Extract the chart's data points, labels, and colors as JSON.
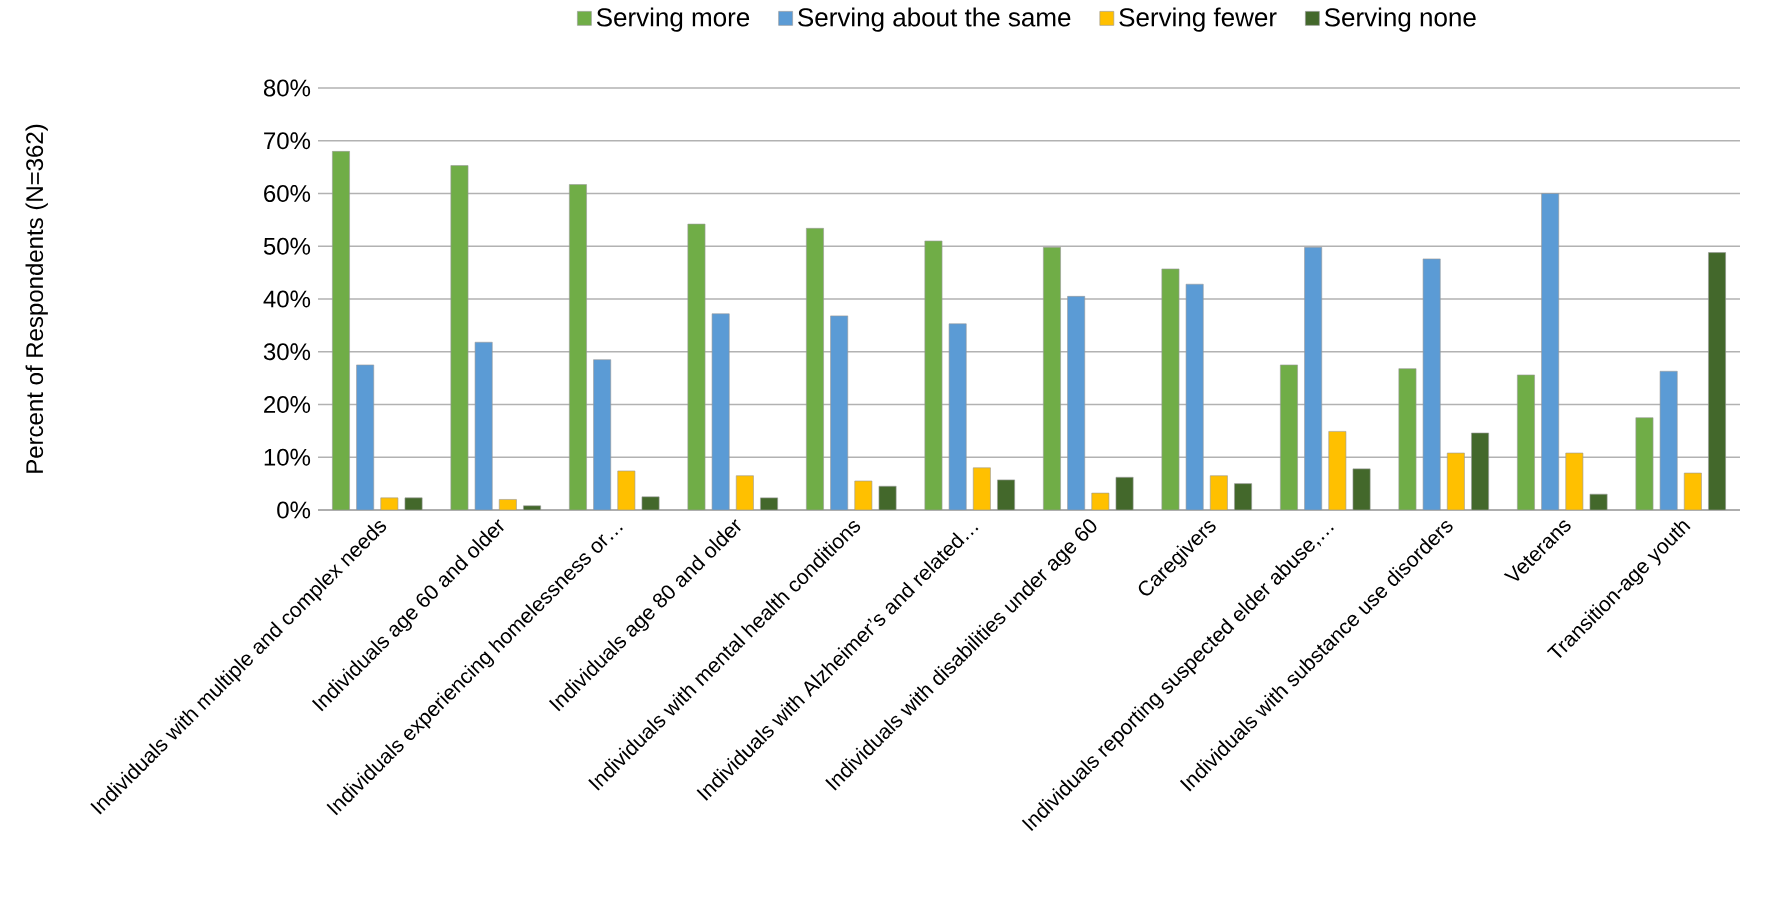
{
  "chart_data": {
    "type": "bar",
    "ylabel": "Percent of Respondents (N=362)",
    "categories": [
      "Individuals with multiple and complex needs",
      "Individuals age 60 and older",
      "Individuals experiencing homelessness or…",
      "Individuals age 80 and older",
      "Individuals with mental health conditions",
      "Individuals with Alzheimer’s and related…",
      "Individuals with disabilities under age 60",
      "Caregivers",
      "Individuals reporting suspected elder abuse,…",
      "Individuals with substance use disorders",
      "Veterans",
      "Transition-age youth"
    ],
    "series": [
      {
        "name": "Serving more",
        "color": "#70ad47",
        "values": [
          68,
          65.3,
          61.7,
          54.2,
          53.4,
          51,
          49.8,
          45.7,
          27.5,
          26.8,
          25.6,
          17.5
        ]
      },
      {
        "name": "Serving about the same",
        "color": "#5b9bd5",
        "values": [
          27.5,
          31.8,
          28.5,
          37.2,
          36.8,
          35.3,
          40.5,
          42.8,
          49.8,
          47.6,
          60,
          26.3
        ]
      },
      {
        "name": "Serving fewer",
        "color": "#ffc000",
        "values": [
          2.3,
          2.0,
          7.4,
          6.5,
          5.5,
          8,
          3.2,
          6.5,
          14.9,
          10.8,
          10.8,
          7
        ]
      },
      {
        "name": "Serving none",
        "color": "#43682b",
        "values": [
          2.3,
          0.8,
          2.5,
          2.3,
          4.5,
          5.7,
          6.2,
          5,
          7.8,
          14.6,
          3,
          48.8
        ]
      }
    ],
    "ylim": [
      0,
      80
    ],
    "yticks": [
      {
        "value": 0,
        "label": "0%"
      },
      {
        "value": 10,
        "label": "10%"
      },
      {
        "value": 20,
        "label": "20%"
      },
      {
        "value": 30,
        "label": "30%"
      },
      {
        "value": 40,
        "label": "40%"
      },
      {
        "value": 50,
        "label": "50%"
      },
      {
        "value": 60,
        "label": "60%"
      },
      {
        "value": 70,
        "label": "70%"
      },
      {
        "value": 80,
        "label": "80%"
      }
    ],
    "grid": "y",
    "legend": "top"
  }
}
